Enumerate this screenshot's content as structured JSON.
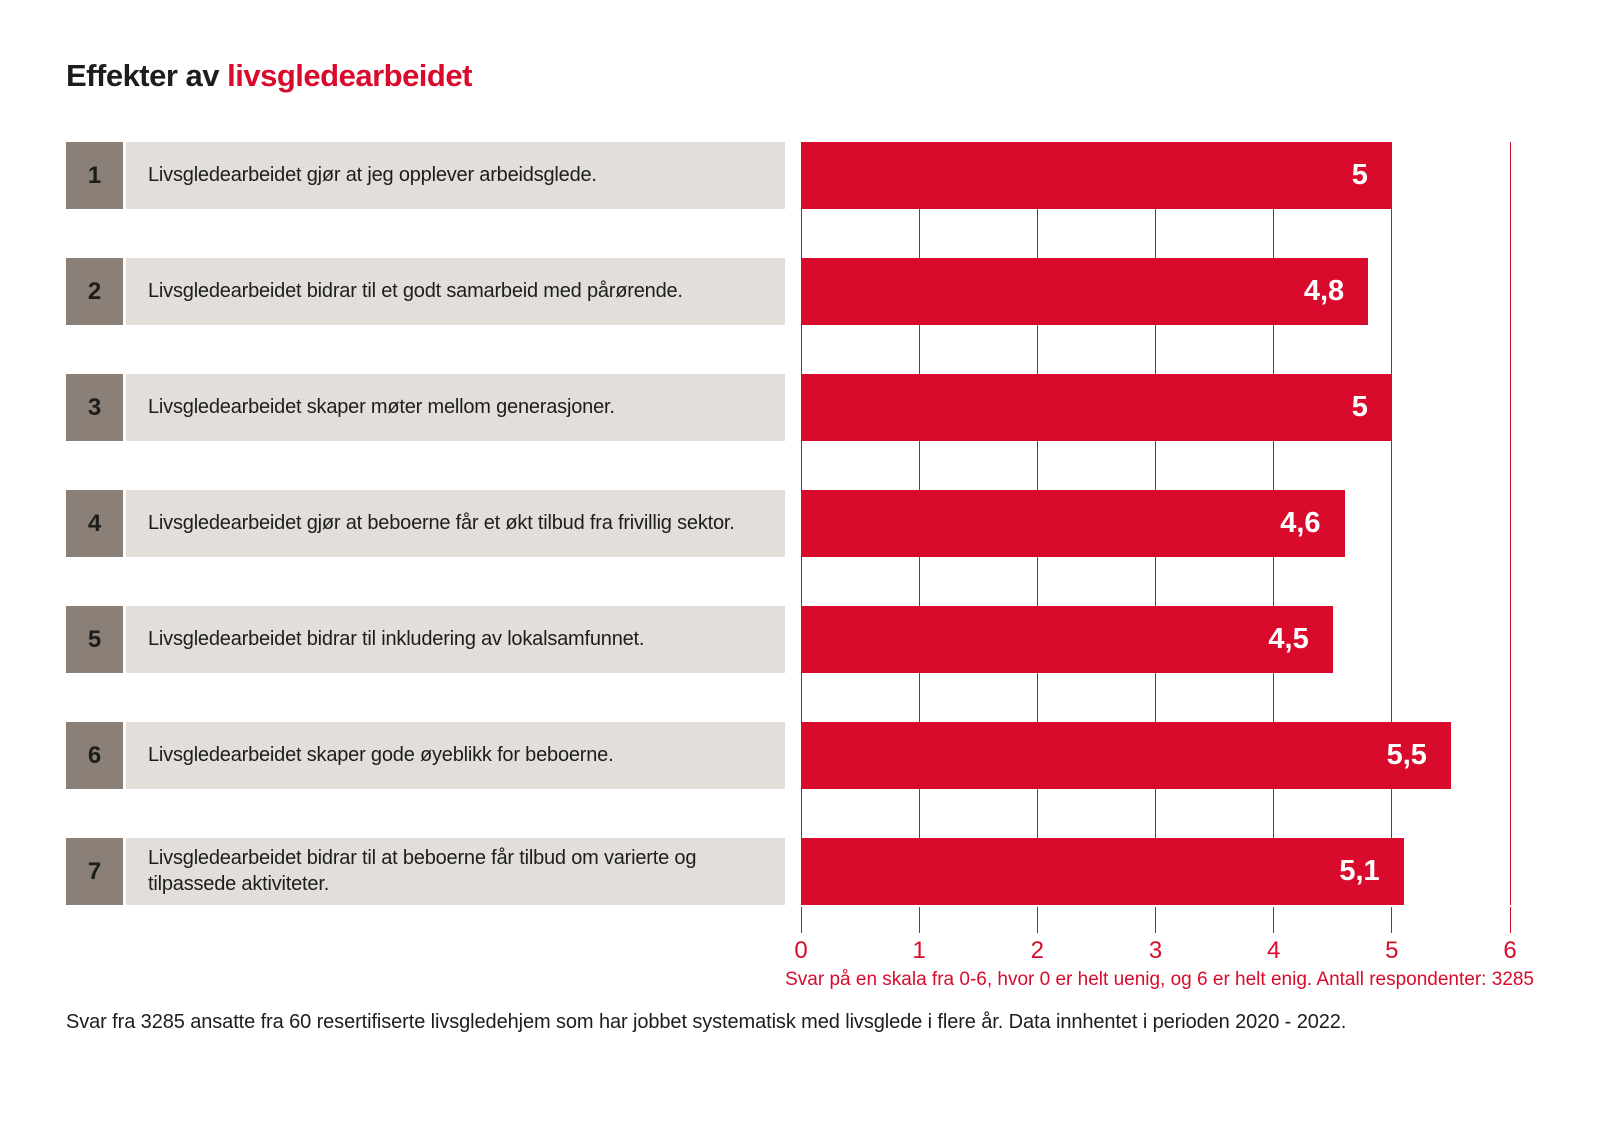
{
  "title": {
    "prefix": "Effekter av",
    "highlight": "livsgledearbeidet"
  },
  "colors": {
    "brand_red": "#d80b2c",
    "number_box_gray": "#8b8078",
    "label_background": "#e2dfda",
    "text_dark": "#1d1d1b",
    "bar_value_text": "#ffffff"
  },
  "rows": [
    {
      "num": "1",
      "label": "Livsgledearbeidet gjør at jeg opplever arbeidsglede.",
      "value": 5,
      "value_label": "5"
    },
    {
      "num": "2",
      "label": "Livsgledearbeidet bidrar til et godt samarbeid med pårørende.",
      "value": 4.8,
      "value_label": "4,8"
    },
    {
      "num": "3",
      "label": "Livsgledearbeidet skaper møter mellom generasjoner.",
      "value": 5,
      "value_label": "5"
    },
    {
      "num": "4",
      "label": "Livsgledearbeidet gjør at beboerne får et økt tilbud fra frivillig sektor.",
      "value": 4.6,
      "value_label": "4,6"
    },
    {
      "num": "5",
      "label": "Livsgledearbeidet bidrar til inkludering av lokalsamfunnet.",
      "value": 4.5,
      "value_label": "4,5"
    },
    {
      "num": "6",
      "label": "Livsgledearbeidet skaper gode øyeblikk for beboerne.",
      "value": 5.5,
      "value_label": "5,5"
    },
    {
      "num": "7",
      "label": "Livsgledearbeidet bidrar til at beboerne får tilbud om varierte og tilpassede aktiviteter.",
      "value": 5.1,
      "value_label": "5,1"
    }
  ],
  "axis": {
    "tick_labels": [
      "0",
      "1",
      "2",
      "3",
      "4",
      "5",
      "6"
    ],
    "note": "Svar på en skala fra 0-6, hvor 0 er helt uenig, og 6 er helt enig. Antall respondenter: 3285"
  },
  "caption": "Svar fra 3285 ansatte fra 60 resertifiserte livsgledehjem som har jobbet systematisk med livsglede i flere år. Data innhentet i perioden 2020 - 2022.",
  "chart_data": {
    "type": "bar",
    "orientation": "horizontal",
    "title": "Effekter av livsgledearbeidet",
    "categories": [
      "Livsgledearbeidet gjør at jeg opplever arbeidsglede.",
      "Livsgledearbeidet bidrar til et godt samarbeid med pårørende.",
      "Livsgledearbeidet skaper møter mellom generasjoner.",
      "Livsgledearbeidet gjør at beboerne får et økt tilbud fra frivillig sektor.",
      "Livsgledearbeidet bidrar til inkludering av lokalsamfunnet.",
      "Livsgledearbeidet skaper gode øyeblikk for beboerne.",
      "Livsgledearbeidet bidrar til at beboerne får tilbud om varierte og tilpassede aktiviteter."
    ],
    "values": [
      5,
      4.8,
      5,
      4.6,
      4.5,
      5.5,
      5.1
    ],
    "value_labels": [
      "5",
      "4,8",
      "5",
      "4,6",
      "4,5",
      "5,5",
      "5,1"
    ],
    "xlim": [
      0,
      6
    ],
    "x_ticks": [
      0,
      1,
      2,
      3,
      4,
      5,
      6
    ],
    "grid": "on",
    "bar_color": "#d80b2c",
    "axis_note": "Svar på en skala fra 0-6, hvor 0 er helt uenig, og 6 er helt enig. Antall respondenter: 3285"
  }
}
